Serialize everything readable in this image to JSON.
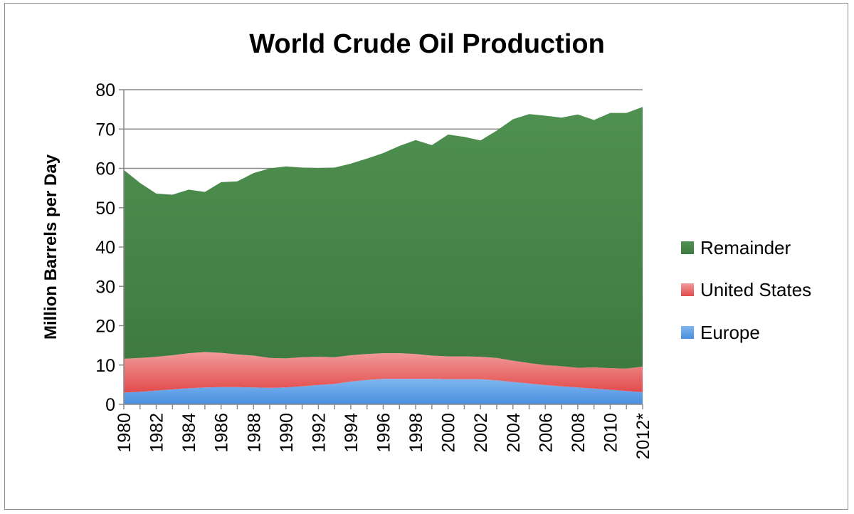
{
  "chart_data": {
    "type": "area",
    "stacked": true,
    "title": "World Crude Oil Production",
    "xlabel": "",
    "ylabel": "Million Barrels per Day",
    "ylim": [
      0,
      80
    ],
    "yticks": [
      0,
      10,
      20,
      30,
      40,
      50,
      60,
      70,
      80
    ],
    "grid": true,
    "legend_position": "right",
    "x": [
      1980,
      1981,
      1982,
      1983,
      1984,
      1985,
      1986,
      1987,
      1988,
      1989,
      1990,
      1991,
      1992,
      1993,
      1994,
      1995,
      1996,
      1997,
      1998,
      1999,
      2000,
      2001,
      2002,
      2003,
      2004,
      2005,
      2006,
      2007,
      2008,
      2009,
      2010,
      2011,
      2012
    ],
    "x_tick_labels": [
      "1980",
      "1982",
      "1984",
      "1986",
      "1988",
      "1990",
      "1992",
      "1994",
      "1996",
      "1998",
      "2000",
      "2002",
      "2004",
      "2006",
      "2008",
      "2010",
      "2012*"
    ],
    "x_tick_years": [
      1980,
      1982,
      1984,
      1986,
      1988,
      1990,
      1992,
      1994,
      1996,
      1998,
      2000,
      2002,
      2004,
      2006,
      2008,
      2010,
      2012
    ],
    "series": [
      {
        "name": "Europe",
        "color": "#5b9bd5",
        "values": [
          3.0,
          3.2,
          3.5,
          3.8,
          4.1,
          4.3,
          4.4,
          4.4,
          4.3,
          4.2,
          4.3,
          4.6,
          4.9,
          5.2,
          5.8,
          6.2,
          6.5,
          6.5,
          6.5,
          6.5,
          6.4,
          6.4,
          6.4,
          6.1,
          5.7,
          5.3,
          4.9,
          4.6,
          4.3,
          4.0,
          3.7,
          3.4,
          3.1
        ]
      },
      {
        "name": "United States",
        "color": "#e46c6c",
        "values": [
          8.6,
          8.6,
          8.6,
          8.7,
          8.9,
          9.0,
          8.7,
          8.3,
          8.1,
          7.6,
          7.4,
          7.4,
          7.2,
          6.8,
          6.7,
          6.6,
          6.5,
          6.5,
          6.3,
          5.9,
          5.8,
          5.8,
          5.7,
          5.7,
          5.4,
          5.2,
          5.1,
          5.1,
          5.0,
          5.4,
          5.5,
          5.7,
          6.5
        ]
      },
      {
        "name": "Remainder",
        "color": "#4a8a4a",
        "values": [
          48.0,
          44.5,
          41.5,
          40.8,
          41.6,
          40.7,
          43.4,
          44.0,
          46.4,
          48.2,
          48.8,
          48.2,
          48.0,
          48.2,
          48.7,
          49.7,
          50.9,
          52.7,
          54.4,
          53.5,
          56.4,
          55.8,
          55.0,
          57.8,
          61.4,
          63.3,
          63.4,
          63.2,
          64.4,
          62.9,
          64.9,
          65.0,
          66.0
        ]
      }
    ],
    "legend_order": [
      "Remainder",
      "United States",
      "Europe"
    ]
  }
}
